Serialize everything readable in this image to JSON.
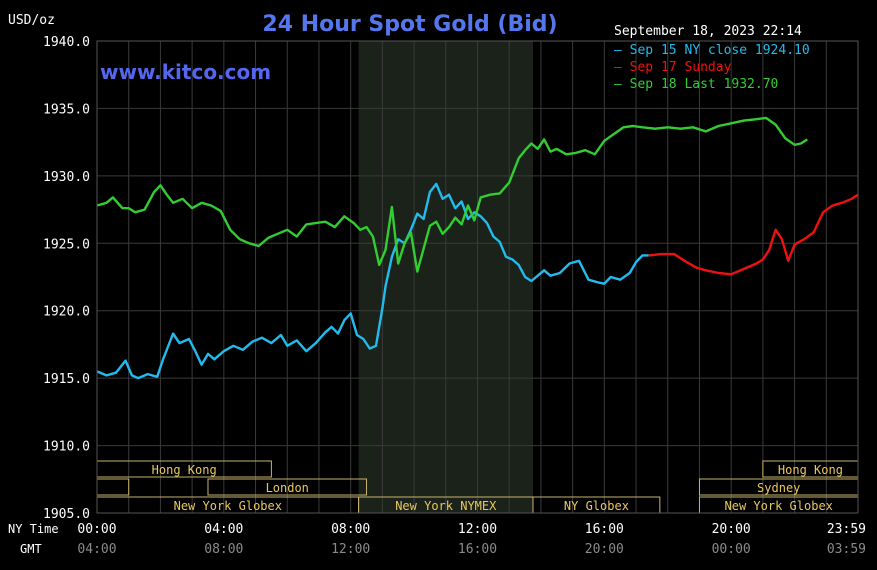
{
  "chart_data": {
    "type": "line",
    "title": "24 Hour Spot Gold (Bid)",
    "watermark": "www.kitco.com",
    "timestamp": "September 18, 2023 22:14",
    "ylabel": "USD/oz",
    "ylim": [
      1905,
      1940
    ],
    "yticks": [
      1905,
      1910,
      1915,
      1920,
      1925,
      1930,
      1935,
      1940
    ],
    "ytick_labels": [
      "1905.0",
      "1910.0",
      "1915.0",
      "1920.0",
      "1925.0",
      "1930.0",
      "1935.0",
      "1940.0"
    ],
    "xlim": [
      0,
      24
    ],
    "x_unit": "hours (NY time)",
    "x_row_label_ny": "NY Time",
    "x_row_label_gmt": "GMT",
    "xticks_ny": [
      "00:00",
      "04:00",
      "08:00",
      "12:00",
      "16:00",
      "20:00",
      "23:59"
    ],
    "xticks_gmt": [
      "04:00",
      "08:00",
      "12:00",
      "16:00",
      "20:00",
      "00:00",
      "03:59"
    ],
    "grid": true,
    "legend_position": "top-right",
    "nymex_session": [
      8.25,
      13.75
    ],
    "sessions": [
      {
        "name": "Hong Kong",
        "start": 0,
        "end": 5.5,
        "row": 0
      },
      {
        "name": "",
        "start": 0,
        "end": 1.0,
        "row": 1
      },
      {
        "name": "London",
        "start": 3.5,
        "end": 8.5,
        "row": 1
      },
      {
        "name": "New York Globex",
        "start": 0,
        "end": 8.25,
        "row": 2
      },
      {
        "name": "New York NYMEX",
        "start": 8.25,
        "end": 13.75,
        "row": 2
      },
      {
        "name": "NY Globex",
        "start": 13.75,
        "end": 17.75,
        "row": 2
      },
      {
        "name": "Hong Kong",
        "start": 21.0,
        "end": 24,
        "row": 0
      },
      {
        "name": "Sydney",
        "start": 19.0,
        "end": 24,
        "row": 1
      },
      {
        "name": "New York Globex",
        "start": 19.0,
        "end": 24,
        "row": 2
      }
    ],
    "series": [
      {
        "name": "Sep 15 NY close 1924.10",
        "color": "#22bbee",
        "x": [
          0,
          0.3,
          0.6,
          0.9,
          1.1,
          1.3,
          1.6,
          1.9,
          2.1,
          2.4,
          2.6,
          2.9,
          3.1,
          3.3,
          3.5,
          3.7,
          4.0,
          4.3,
          4.6,
          4.9,
          5.2,
          5.5,
          5.8,
          6.0,
          6.3,
          6.6,
          6.9,
          7.2,
          7.4,
          7.6,
          7.8,
          8.0,
          8.2,
          8.4,
          8.6,
          8.8,
          9.0,
          9.1,
          9.3,
          9.5,
          9.7,
          9.9,
          10.1,
          10.3,
          10.5,
          10.7,
          10.9,
          11.1,
          11.3,
          11.5,
          11.7,
          11.9,
          12.1,
          12.3,
          12.5,
          12.7,
          12.9,
          13.1,
          13.3,
          13.5,
          13.7,
          13.9,
          14.1,
          14.3,
          14.6,
          14.9,
          15.2,
          15.5,
          15.8,
          16.0,
          16.2,
          16.5,
          16.8,
          17.0,
          17.2,
          17.4
        ],
        "y": [
          1915.5,
          1915.2,
          1915.4,
          1916.3,
          1915.2,
          1915.0,
          1915.3,
          1915.1,
          1916.5,
          1918.3,
          1917.6,
          1917.9,
          1917.0,
          1916.0,
          1916.8,
          1916.4,
          1917.0,
          1917.4,
          1917.1,
          1917.7,
          1918.0,
          1917.6,
          1918.2,
          1917.4,
          1917.8,
          1917.0,
          1917.6,
          1918.4,
          1918.8,
          1918.3,
          1919.3,
          1919.8,
          1918.2,
          1917.9,
          1917.2,
          1917.4,
          1920.2,
          1921.8,
          1924.0,
          1925.3,
          1925.0,
          1926.0,
          1927.2,
          1926.8,
          1928.8,
          1929.4,
          1928.3,
          1928.6,
          1927.6,
          1928.1,
          1926.8,
          1927.3,
          1927.0,
          1926.5,
          1925.5,
          1925.1,
          1924.0,
          1923.8,
          1923.4,
          1922.5,
          1922.2,
          1922.6,
          1923.0,
          1922.6,
          1922.8,
          1923.5,
          1923.7,
          1922.3,
          1922.1,
          1922.0,
          1922.5,
          1922.3,
          1922.8,
          1923.6,
          1924.1,
          1924.1
        ]
      },
      {
        "name": "Sep 17 Sunday",
        "color": "#ee1111",
        "x": [
          17.4,
          17.8,
          18.2,
          18.6,
          18.9,
          19.2,
          19.6,
          20.0,
          20.4,
          20.8,
          21.0,
          21.2,
          21.4,
          21.6,
          21.8,
          22.0,
          22.3,
          22.6,
          22.9,
          23.2,
          23.5,
          23.8,
          24.0
        ],
        "y": [
          1924.1,
          1924.2,
          1924.2,
          1923.6,
          1923.2,
          1923.0,
          1922.8,
          1922.7,
          1923.1,
          1923.5,
          1923.8,
          1924.5,
          1926.0,
          1925.3,
          1923.7,
          1924.9,
          1925.3,
          1925.8,
          1927.3,
          1927.8,
          1928.0,
          1928.3,
          1928.6
        ]
      },
      {
        "name": "Sep 18 Last 1932.70",
        "color": "#33cc33",
        "x": [
          0,
          0.3,
          0.5,
          0.8,
          1.0,
          1.2,
          1.5,
          1.8,
          2.0,
          2.2,
          2.4,
          2.7,
          3.0,
          3.3,
          3.6,
          3.9,
          4.2,
          4.5,
          4.8,
          5.1,
          5.4,
          5.7,
          6.0,
          6.3,
          6.6,
          6.9,
          7.2,
          7.5,
          7.8,
          8.1,
          8.3,
          8.5,
          8.7,
          8.9,
          9.1,
          9.3,
          9.5,
          9.7,
          9.9,
          10.1,
          10.3,
          10.5,
          10.7,
          10.9,
          11.1,
          11.3,
          11.5,
          11.7,
          11.9,
          12.1,
          12.4,
          12.7,
          13.0,
          13.3,
          13.5,
          13.7,
          13.9,
          14.1,
          14.3,
          14.5,
          14.8,
          15.1,
          15.4,
          15.7,
          16.0,
          16.3,
          16.6,
          16.9,
          17.2,
          17.6,
          18.0,
          18.4,
          18.8,
          19.2,
          19.6,
          20.0,
          20.4,
          20.8,
          21.1,
          21.4,
          21.7,
          22.0,
          22.2,
          22.4
        ],
        "y": [
          1927.8,
          1928.0,
          1928.4,
          1927.6,
          1927.6,
          1927.3,
          1927.5,
          1928.8,
          1929.3,
          1928.6,
          1928.0,
          1928.3,
          1927.6,
          1928.0,
          1927.8,
          1927.4,
          1926.0,
          1925.3,
          1925.0,
          1924.8,
          1925.4,
          1925.7,
          1926.0,
          1925.5,
          1926.4,
          1926.5,
          1926.6,
          1926.2,
          1927.0,
          1926.5,
          1926.0,
          1926.2,
          1925.5,
          1923.4,
          1924.5,
          1927.7,
          1923.5,
          1925.0,
          1925.8,
          1922.9,
          1924.6,
          1926.3,
          1926.6,
          1925.7,
          1926.2,
          1926.9,
          1926.4,
          1927.8,
          1926.7,
          1928.4,
          1928.6,
          1928.7,
          1929.5,
          1931.3,
          1931.9,
          1932.4,
          1932.0,
          1932.7,
          1931.8,
          1932.0,
          1931.6,
          1931.7,
          1931.9,
          1931.6,
          1932.6,
          1933.1,
          1933.6,
          1933.7,
          1933.6,
          1933.5,
          1933.6,
          1933.5,
          1933.6,
          1933.3,
          1933.7,
          1933.9,
          1934.1,
          1934.2,
          1934.3,
          1933.8,
          1932.8,
          1932.3,
          1932.4,
          1932.7
        ]
      }
    ]
  }
}
